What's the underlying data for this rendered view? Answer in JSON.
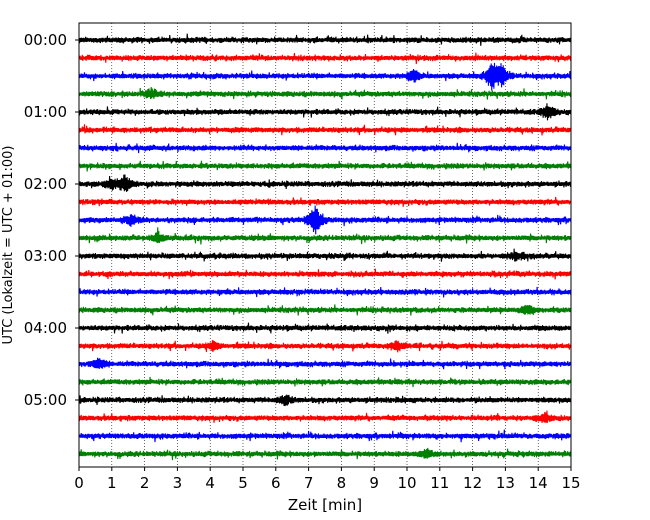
{
  "chart_data": {
    "type": "line",
    "subtype": "seismogram-helicorder",
    "xlabel": "Zeit  [min]",
    "ylabel": "UTC (Lokalzeit = UTC + 01:00)",
    "xlim": [
      0,
      15
    ],
    "x_ticks": [
      0,
      1,
      2,
      3,
      4,
      5,
      6,
      7,
      8,
      9,
      10,
      11,
      12,
      13,
      14,
      15
    ],
    "y_tick_labels": [
      "00:00",
      "01:00",
      "02:00",
      "03:00",
      "04:00",
      "05:00"
    ],
    "y_tick_rows": [
      0,
      4,
      8,
      12,
      16,
      20
    ],
    "row_minutes": 15,
    "grid": "vertical dotted at each minute",
    "color_cycle": [
      "#000000",
      "#ff0000",
      "#0000ff",
      "#008000"
    ],
    "rows": [
      {
        "start": "00:00",
        "events": []
      },
      {
        "start": "00:15",
        "events": []
      },
      {
        "start": "00:30",
        "events": [
          {
            "t": 10.2,
            "amp": 0.35
          },
          {
            "t": 12.6,
            "amp": 0.9
          },
          {
            "t": 12.9,
            "amp": 0.6
          }
        ]
      },
      {
        "start": "00:45",
        "events": [
          {
            "t": 2.2,
            "amp": 0.35
          }
        ]
      },
      {
        "start": "01:00",
        "events": [
          {
            "t": 14.3,
            "amp": 0.45
          }
        ]
      },
      {
        "start": "01:15",
        "events": []
      },
      {
        "start": "01:30",
        "events": []
      },
      {
        "start": "01:45",
        "events": []
      },
      {
        "start": "02:00",
        "events": [
          {
            "t": 1.4,
            "amp": 0.55
          },
          {
            "t": 1.0,
            "amp": 0.3
          }
        ]
      },
      {
        "start": "02:15",
        "events": []
      },
      {
        "start": "02:30",
        "events": [
          {
            "t": 7.2,
            "amp": 0.95
          },
          {
            "t": 1.6,
            "amp": 0.3
          }
        ]
      },
      {
        "start": "02:45",
        "events": [
          {
            "t": 2.4,
            "amp": 0.3
          }
        ]
      },
      {
        "start": "03:00",
        "events": [
          {
            "t": 13.3,
            "amp": 0.25
          }
        ]
      },
      {
        "start": "03:15",
        "events": []
      },
      {
        "start": "03:30",
        "events": []
      },
      {
        "start": "03:45",
        "events": [
          {
            "t": 13.7,
            "amp": 0.3
          }
        ]
      },
      {
        "start": "04:00",
        "events": []
      },
      {
        "start": "04:15",
        "events": [
          {
            "t": 9.7,
            "amp": 0.3
          },
          {
            "t": 4.1,
            "amp": 0.25
          }
        ]
      },
      {
        "start": "04:30",
        "events": [
          {
            "t": 0.6,
            "amp": 0.35
          }
        ]
      },
      {
        "start": "04:45",
        "events": []
      },
      {
        "start": "05:00",
        "events": [
          {
            "t": 6.3,
            "amp": 0.3
          }
        ]
      },
      {
        "start": "05:15",
        "events": [
          {
            "t": 14.2,
            "amp": 0.3
          }
        ]
      },
      {
        "start": "05:30",
        "events": []
      },
      {
        "start": "05:45",
        "events": [
          {
            "t": 10.6,
            "amp": 0.25
          }
        ]
      }
    ]
  }
}
